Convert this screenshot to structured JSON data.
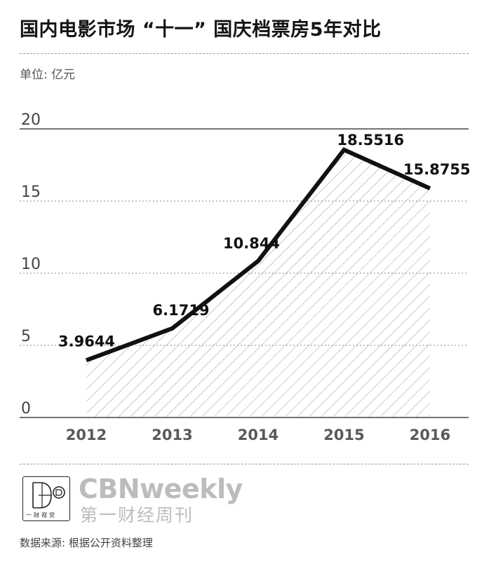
{
  "title": "国内电影市场 “十一” 国庆档票房5年对比",
  "unit_label": "单位: 亿元",
  "chart_data": {
    "type": "area",
    "categories": [
      "2012",
      "2013",
      "2014",
      "2015",
      "2016"
    ],
    "values": [
      3.9644,
      6.1719,
      10.844,
      18.5516,
      15.8755
    ],
    "value_labels": [
      "3.9644",
      "6.1719",
      "10.844",
      "18.5516",
      "15.8755"
    ],
    "y_ticks": [
      "0",
      "5",
      "10",
      "15",
      "20"
    ],
    "ylim": [
      0,
      20
    ],
    "grid": true,
    "fill": "diagonal-hatch"
  },
  "footer": {
    "brand_en": "CBNweekly",
    "brand_cn": "第一财经周刊",
    "logo_text": "一财视觉",
    "source": "数据来源: 根据公开资料整理"
  },
  "colors": {
    "line": "#111111",
    "hatch": "#9a9a9a",
    "grid": "#8a8a8a",
    "brand": "#bcbcbc"
  }
}
